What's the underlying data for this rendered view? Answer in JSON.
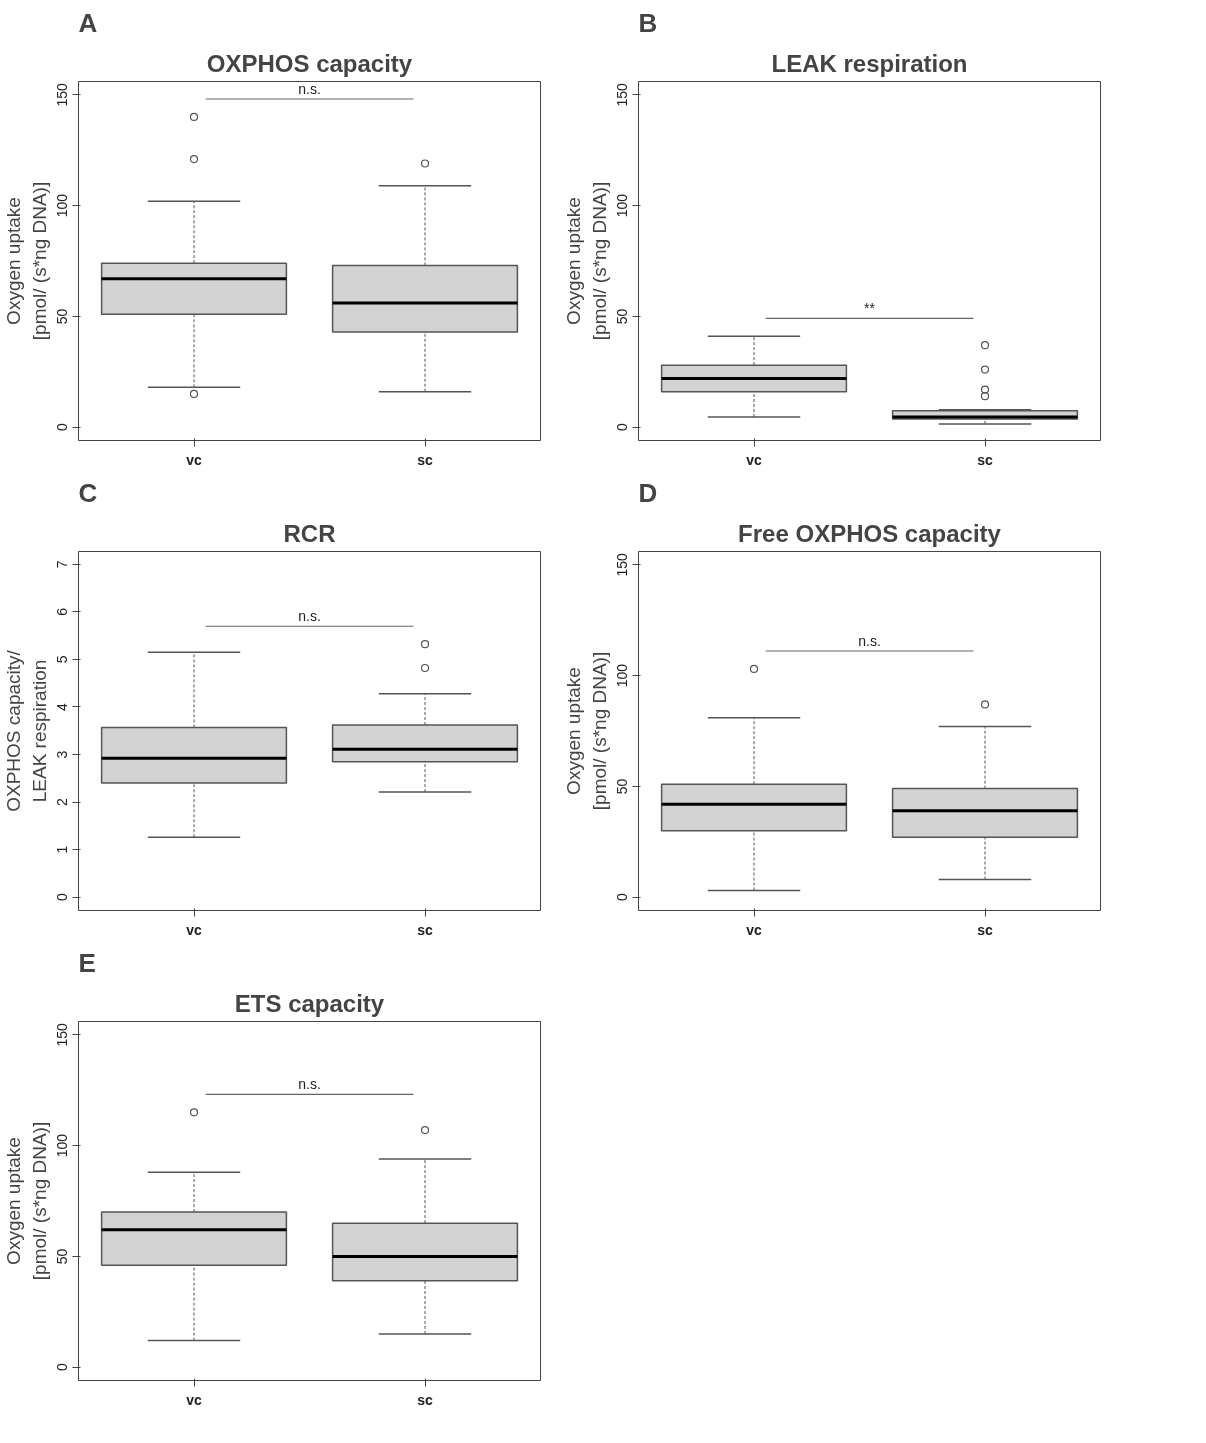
{
  "chart_data": [
    {
      "type": "box",
      "title": "OXPHOS capacity",
      "ylabel": "Oxygen uptake\n[pmol/ (s*ng DNA)]",
      "categories": [
        "vc",
        "sc"
      ],
      "color": "#d3d3d3",
      "boxes": [
        {
          "low": 18,
          "q1": 51,
          "median": 67,
          "q3": 74,
          "high": 102,
          "outliers": [
            140,
            121,
            15
          ]
        },
        {
          "low": 16,
          "q1": 43,
          "median": 56,
          "q3": 73,
          "high": 109,
          "outliers": [
            119
          ]
        }
      ],
      "ylim": [
        -6,
        156
      ],
      "yticks": [
        0,
        50,
        100,
        150
      ],
      "annotations": [
        "A",
        "n.s."
      ]
    },
    {
      "type": "box",
      "title": "LEAK respiration",
      "ylabel": "Oxygen uptake\n[pmol/ (s*ng DNA)]",
      "categories": [
        "vc",
        "sc"
      ],
      "color": "#d3d3d3",
      "boxes": [
        {
          "low": 4.6,
          "q1": 16,
          "median": 22,
          "q3": 28,
          "high": 41
        },
        {
          "low": 1.5,
          "q1": 3.7,
          "median": 4.6,
          "q3": 7.4,
          "high": 7.9,
          "outliers": [
            37,
            26,
            17,
            14
          ]
        }
      ],
      "ylim": [
        -6,
        156
      ],
      "yticks": [
        0,
        50,
        100,
        150
      ],
      "annotations": [
        "B",
        "**"
      ]
    },
    {
      "type": "box",
      "title": "RCR",
      "ylabel": "OXPHOS capacity/\nLEAK respiration",
      "categories": [
        "vc",
        "sc"
      ],
      "color": "#d3d3d3",
      "boxes": [
        {
          "low": 1.26,
          "q1": 2.4,
          "median": 2.92,
          "q3": 3.57,
          "high": 5.15
        },
        {
          "low": 2.21,
          "q1": 2.85,
          "median": 3.11,
          "q3": 3.62,
          "high": 4.28,
          "outliers": [
            5.32,
            4.82
          ]
        }
      ],
      "ylim": [
        -0.28,
        7.27
      ],
      "yticks": [
        0,
        1,
        2,
        3,
        4,
        5,
        6,
        7
      ],
      "annotations": [
        "C",
        "n.s."
      ]
    },
    {
      "type": "box",
      "title": "Free OXPHOS capacity",
      "ylabel": "Oxygen uptake\n[pmol/ (s*ng DNA)]",
      "categories": [
        "vc",
        "sc"
      ],
      "color": "#d3d3d3",
      "boxes": [
        {
          "low": 3,
          "q1": 30,
          "median": 42,
          "q3": 51,
          "high": 81,
          "outliers": [
            103
          ]
        },
        {
          "low": 8,
          "q1": 27,
          "median": 39,
          "q3": 49,
          "high": 77,
          "outliers": [
            87
          ]
        }
      ],
      "ylim": [
        -6,
        156
      ],
      "yticks": [
        0,
        50,
        100,
        150
      ],
      "annotations": [
        "D",
        "n.s."
      ]
    },
    {
      "type": "box",
      "title": "ETS capacity",
      "ylabel": "Oxygen uptake\n[pmol/ (s*ng DNA)]",
      "categories": [
        "vc",
        "sc"
      ],
      "color": "#d3d3d3",
      "boxes": [
        {
          "low": 12,
          "q1": 46,
          "median": 62,
          "q3": 70,
          "high": 88,
          "outliers": [
            115
          ]
        },
        {
          "low": 15,
          "q1": 39,
          "median": 50,
          "q3": 65,
          "high": 94,
          "outliers": [
            107
          ]
        }
      ],
      "ylim": [
        -6,
        156
      ],
      "yticks": [
        0,
        50,
        100,
        150
      ],
      "annotations": [
        "E",
        "n.s."
      ]
    }
  ]
}
